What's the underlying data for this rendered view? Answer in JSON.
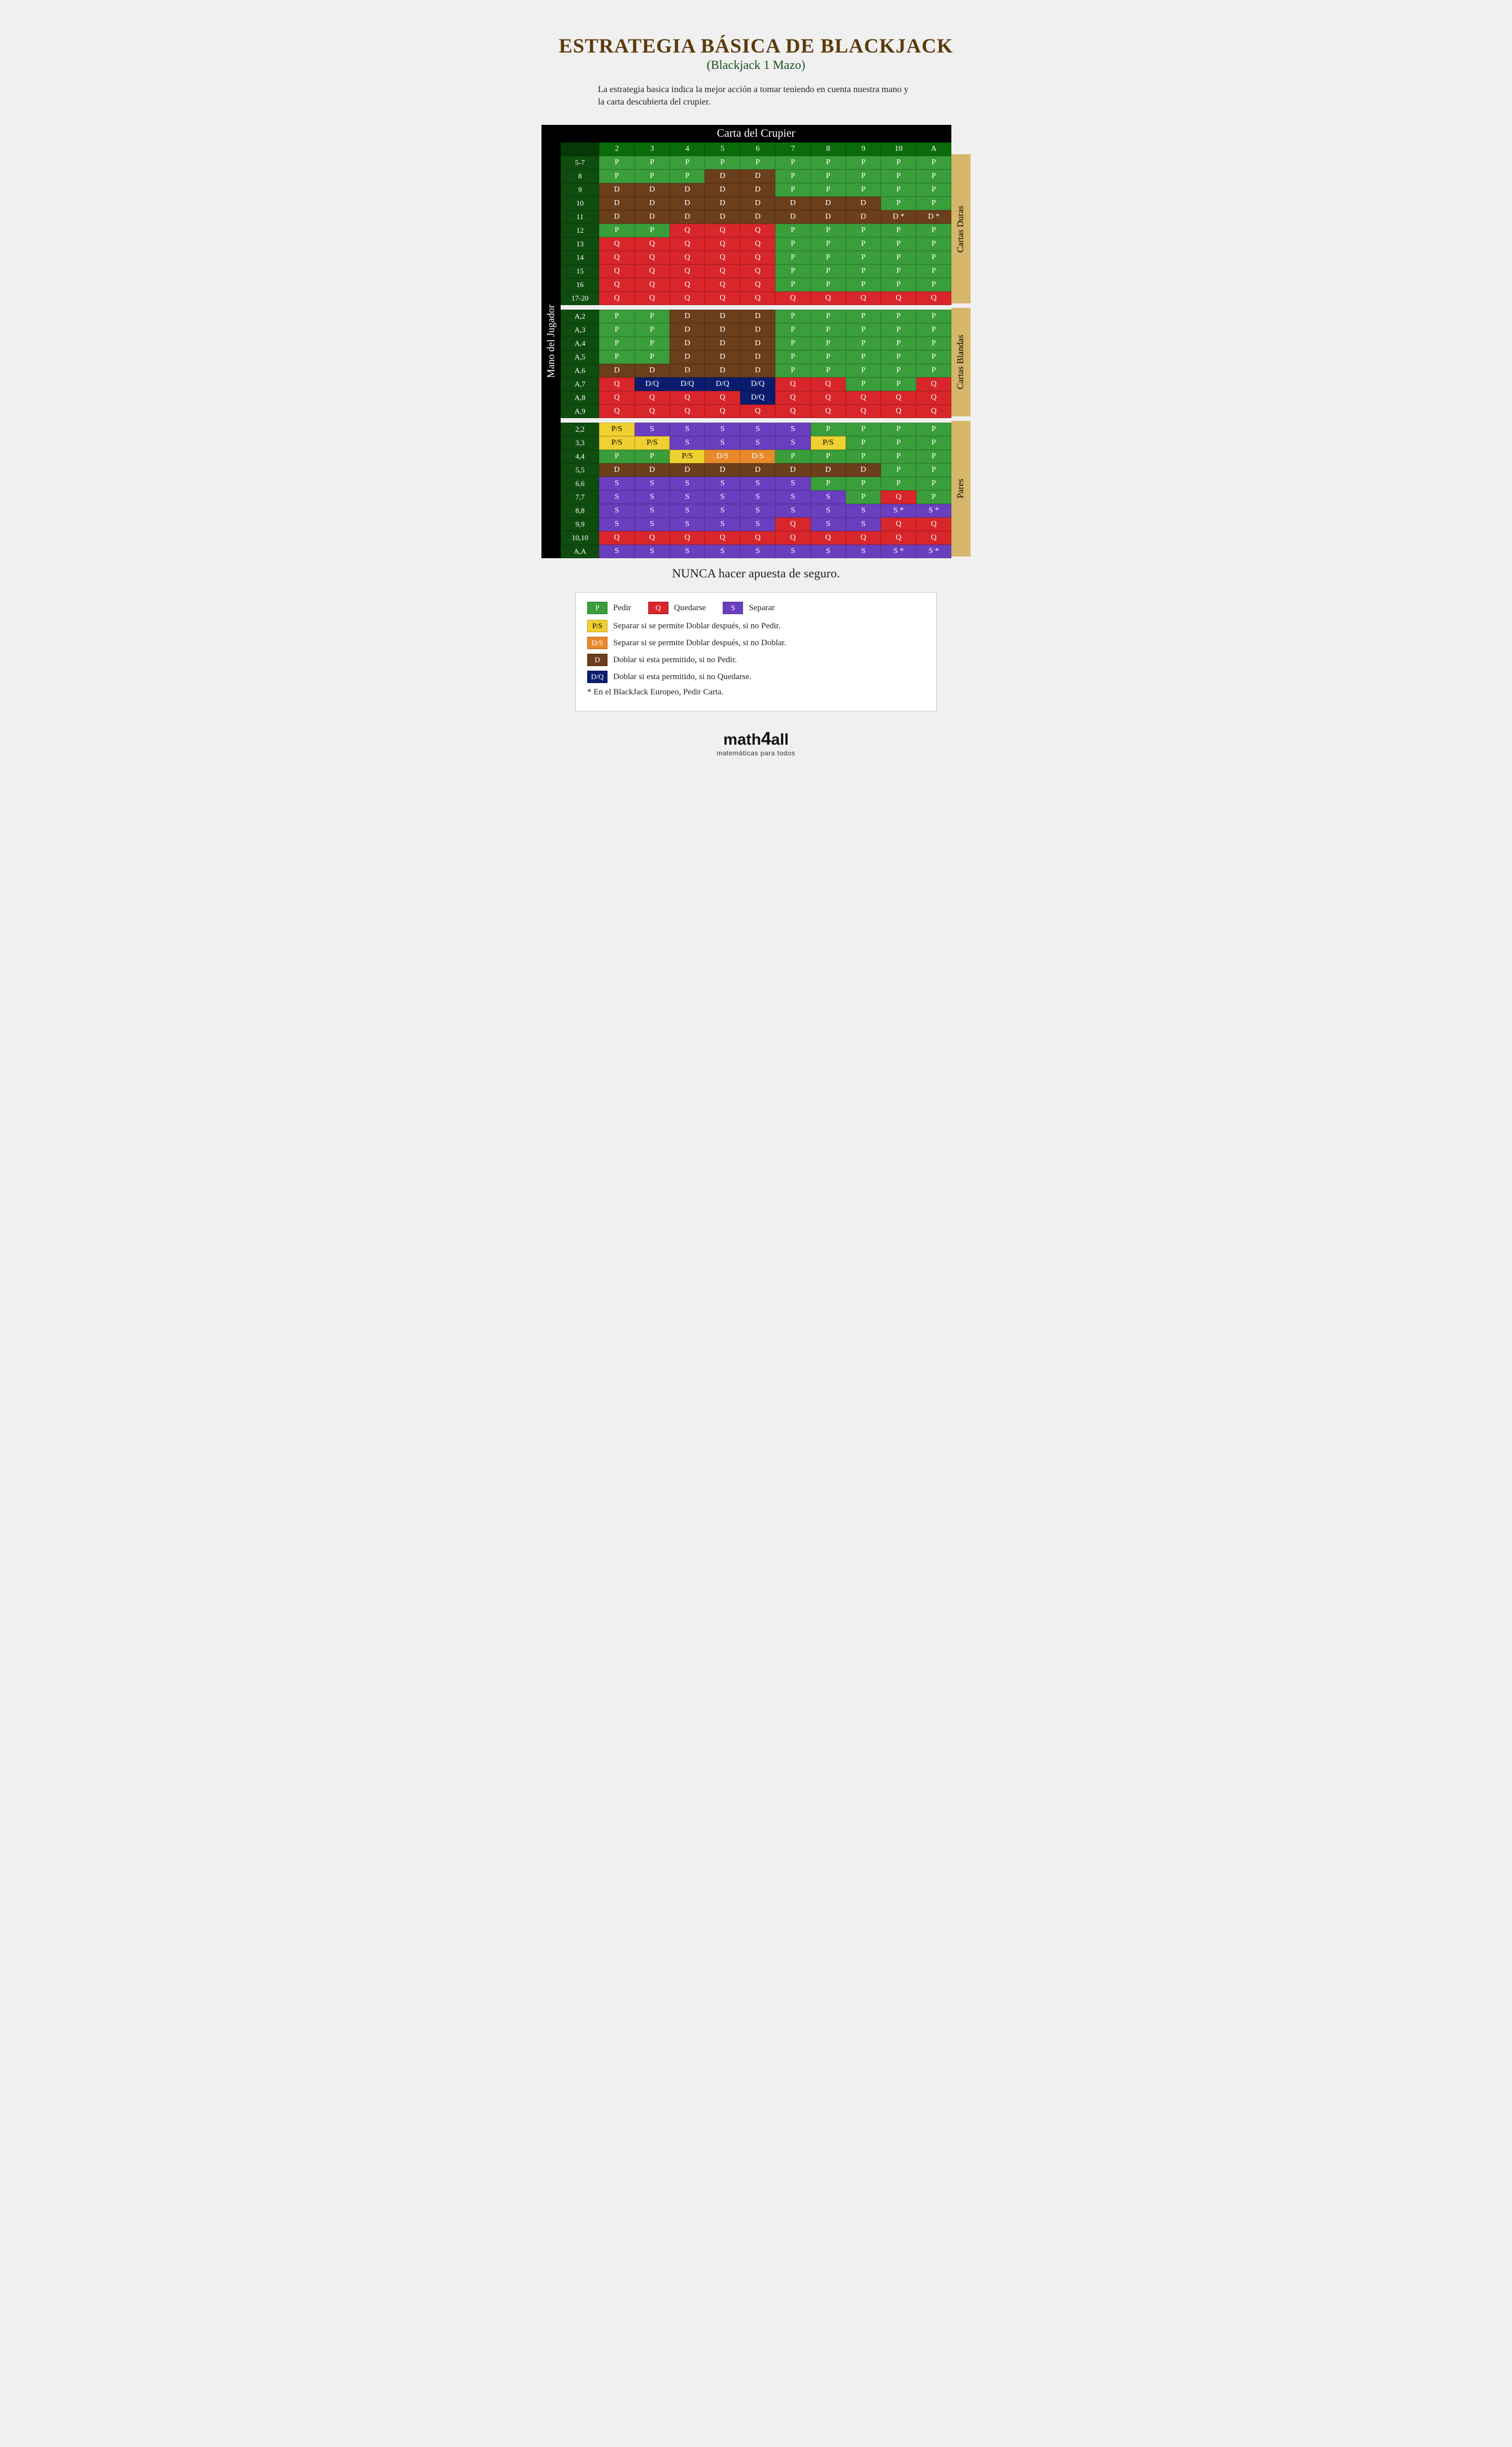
{
  "colors": {
    "title": "#5c3a0a",
    "subtitle": "#1b4d1b",
    "P": "#3a9e3a",
    "Q": "#d9262a",
    "S": "#6a3fbf",
    "D": "#6b3e1c",
    "DQ": "#0a1c6e",
    "PS": "#f0d030",
    "DS": "#e8892a",
    "section": "#d6b66a",
    "header_bg": "#000000",
    "col_header": "#0a6b0a",
    "row_label": "#0f4d0f",
    "corner": "#043804"
  },
  "text": {
    "title": "ESTRATEGIA BÁSICA DE BLACKJACK",
    "subtitle": "(Blackjack 1 Mazo)",
    "description": "La estrategia basica indica la mejor acción a tomar teniendo en cuenta nuestra mano y la carta descubierta del crupier.",
    "dealer_header": "Carta del Crupier",
    "player_label": "Mano del Jugador",
    "section1": "Cartas Duras",
    "section2": "Cartas Blandas",
    "section3": "Pares",
    "footer_note": "NUNCA hacer apuesta de seguro.",
    "logo": "math4all",
    "logo_sub": "matemáticas para todos"
  },
  "legend": {
    "P": "Pedir",
    "Q": "Quedarse",
    "S": "Separar",
    "PS": "Separar si se permite Doblar después, si no Pedir.",
    "DS": "Separar si se permite Doblar después, si no Doblar.",
    "D": "Doblar si esta permitido, si no Pedir.",
    "DQ": "Doblar si esta permitido, si no Quedarse.",
    "star": "* En el BlackJack Europeo, Pedir Carta."
  },
  "cell_labels": {
    "P": "P",
    "Q": "Q",
    "S": "S",
    "D": "D",
    "DQ": "D/Q",
    "PS": "P/S",
    "DS": "D/S",
    "D*": "D *",
    "S*": "S *"
  },
  "dealer_cols": [
    "2",
    "3",
    "4",
    "5",
    "6",
    "7",
    "8",
    "9",
    "10",
    "A"
  ],
  "sections": [
    {
      "name": "section1",
      "rows": [
        {
          "label": "5-7",
          "cells": [
            "P",
            "P",
            "P",
            "P",
            "P",
            "P",
            "P",
            "P",
            "P",
            "P"
          ]
        },
        {
          "label": "8",
          "cells": [
            "P",
            "P",
            "P",
            "D",
            "D",
            "P",
            "P",
            "P",
            "P",
            "P"
          ]
        },
        {
          "label": "9",
          "cells": [
            "D",
            "D",
            "D",
            "D",
            "D",
            "P",
            "P",
            "P",
            "P",
            "P"
          ]
        },
        {
          "label": "10",
          "cells": [
            "D",
            "D",
            "D",
            "D",
            "D",
            "D",
            "D",
            "D",
            "P",
            "P"
          ]
        },
        {
          "label": "11",
          "cells": [
            "D",
            "D",
            "D",
            "D",
            "D",
            "D",
            "D",
            "D",
            "D*",
            "D*"
          ]
        },
        {
          "label": "12",
          "cells": [
            "P",
            "P",
            "Q",
            "Q",
            "Q",
            "P",
            "P",
            "P",
            "P",
            "P"
          ]
        },
        {
          "label": "13",
          "cells": [
            "Q",
            "Q",
            "Q",
            "Q",
            "Q",
            "P",
            "P",
            "P",
            "P",
            "P"
          ]
        },
        {
          "label": "14",
          "cells": [
            "Q",
            "Q",
            "Q",
            "Q",
            "Q",
            "P",
            "P",
            "P",
            "P",
            "P"
          ]
        },
        {
          "label": "15",
          "cells": [
            "Q",
            "Q",
            "Q",
            "Q",
            "Q",
            "P",
            "P",
            "P",
            "P",
            "P"
          ]
        },
        {
          "label": "16",
          "cells": [
            "Q",
            "Q",
            "Q",
            "Q",
            "Q",
            "P",
            "P",
            "P",
            "P",
            "P"
          ]
        },
        {
          "label": "17-20",
          "cells": [
            "Q",
            "Q",
            "Q",
            "Q",
            "Q",
            "Q",
            "Q",
            "Q",
            "Q",
            "Q"
          ]
        }
      ]
    },
    {
      "name": "section2",
      "rows": [
        {
          "label": "A,2",
          "cells": [
            "P",
            "P",
            "D",
            "D",
            "D",
            "P",
            "P",
            "P",
            "P",
            "P"
          ]
        },
        {
          "label": "A,3",
          "cells": [
            "P",
            "P",
            "D",
            "D",
            "D",
            "P",
            "P",
            "P",
            "P",
            "P"
          ]
        },
        {
          "label": "A,4",
          "cells": [
            "P",
            "P",
            "D",
            "D",
            "D",
            "P",
            "P",
            "P",
            "P",
            "P"
          ]
        },
        {
          "label": "A,5",
          "cells": [
            "P",
            "P",
            "D",
            "D",
            "D",
            "P",
            "P",
            "P",
            "P",
            "P"
          ]
        },
        {
          "label": "A,6",
          "cells": [
            "D",
            "D",
            "D",
            "D",
            "D",
            "P",
            "P",
            "P",
            "P",
            "P"
          ]
        },
        {
          "label": "A,7",
          "cells": [
            "Q",
            "DQ",
            "DQ",
            "DQ",
            "DQ",
            "Q",
            "Q",
            "P",
            "P",
            "Q"
          ]
        },
        {
          "label": "A,8",
          "cells": [
            "Q",
            "Q",
            "Q",
            "Q",
            "DQ",
            "Q",
            "Q",
            "Q",
            "Q",
            "Q"
          ]
        },
        {
          "label": "A,9",
          "cells": [
            "Q",
            "Q",
            "Q",
            "Q",
            "Q",
            "Q",
            "Q",
            "Q",
            "Q",
            "Q"
          ]
        }
      ]
    },
    {
      "name": "section3",
      "rows": [
        {
          "label": "2,2",
          "cells": [
            "PS",
            "S",
            "S",
            "S",
            "S",
            "S",
            "P",
            "P",
            "P",
            "P"
          ]
        },
        {
          "label": "3,3",
          "cells": [
            "PS",
            "PS",
            "S",
            "S",
            "S",
            "S",
            "PS",
            "P",
            "P",
            "P"
          ]
        },
        {
          "label": "4,4",
          "cells": [
            "P",
            "P",
            "PS",
            "DS",
            "DS",
            "P",
            "P",
            "P",
            "P",
            "P"
          ]
        },
        {
          "label": "5,5",
          "cells": [
            "D",
            "D",
            "D",
            "D",
            "D",
            "D",
            "D",
            "D",
            "P",
            "P"
          ]
        },
        {
          "label": "6,6",
          "cells": [
            "S",
            "S",
            "S",
            "S",
            "S",
            "S",
            "P",
            "P",
            "P",
            "P"
          ]
        },
        {
          "label": "7,7",
          "cells": [
            "S",
            "S",
            "S",
            "S",
            "S",
            "S",
            "S",
            "P",
            "Q",
            "P"
          ]
        },
        {
          "label": "8,8",
          "cells": [
            "S",
            "S",
            "S",
            "S",
            "S",
            "S",
            "S",
            "S",
            "S*",
            "S*"
          ]
        },
        {
          "label": "9,9",
          "cells": [
            "S",
            "S",
            "S",
            "S",
            "S",
            "Q",
            "S",
            "S",
            "Q",
            "Q"
          ]
        },
        {
          "label": "10,10",
          "cells": [
            "Q",
            "Q",
            "Q",
            "Q",
            "Q",
            "Q",
            "Q",
            "Q",
            "Q",
            "Q"
          ]
        },
        {
          "label": "A,A",
          "cells": [
            "S",
            "S",
            "S",
            "S",
            "S",
            "S",
            "S",
            "S",
            "S*",
            "S*"
          ]
        }
      ]
    }
  ]
}
